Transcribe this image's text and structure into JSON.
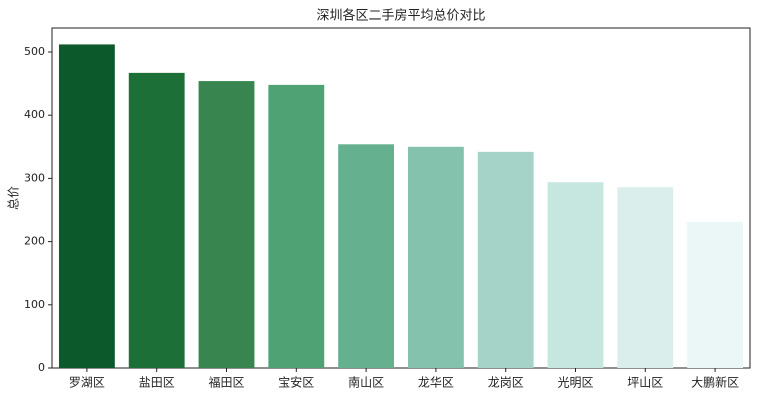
{
  "chart_data": {
    "type": "bar",
    "title": "深圳各区二手房平均总价对比",
    "y_label": "总价",
    "categories": [
      "罗湖区",
      "盐田区",
      "福田区",
      "宝安区",
      "南山区",
      "龙华区",
      "龙岗区",
      "光明区",
      "坪山区",
      "大鹏新区"
    ],
    "values": [
      512,
      467,
      454,
      448,
      354,
      350,
      342,
      294,
      286,
      231
    ],
    "colors": [
      "#0c5a2b",
      "#1d6f38",
      "#38854f",
      "#4fa274",
      "#64b08f",
      "#84c2ad",
      "#a6d3c7",
      "#c6e6e0",
      "#daeeec",
      "#ebf6f6"
    ],
    "ylim": [
      0,
      538
    ],
    "yticks": [
      0,
      100,
      200,
      300,
      400,
      500
    ],
    "grid": false
  }
}
